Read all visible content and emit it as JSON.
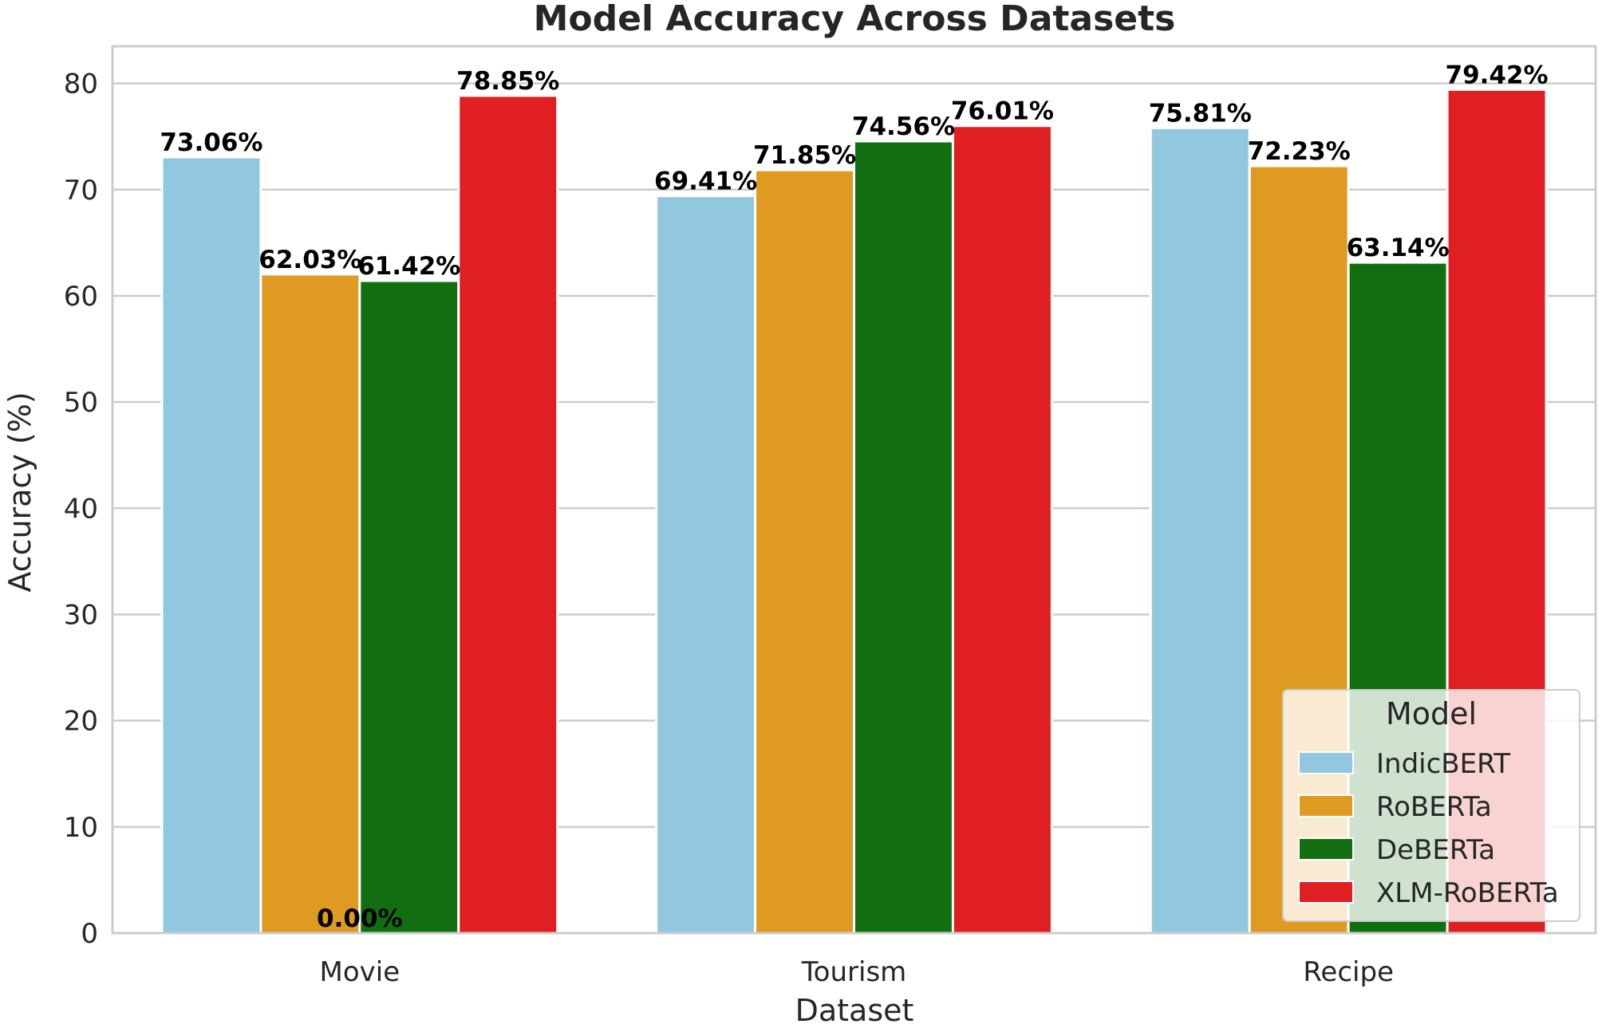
{
  "chart_data": {
    "type": "bar",
    "title": "Model Accuracy Across Datasets",
    "xlabel": "Dataset",
    "ylabel": "Accuracy (%)",
    "categories": [
      "Movie",
      "Tourism",
      "Recipe"
    ],
    "ylim": [
      0,
      83.5
    ],
    "yticks": [
      0,
      10,
      20,
      30,
      40,
      50,
      60,
      70,
      80
    ],
    "grid": true,
    "legend": {
      "title": "Model",
      "placement": "lower-right"
    },
    "series": [
      {
        "name": "IndicBERT",
        "color": "#92c8df",
        "values": [
          73.06,
          69.41,
          75.81
        ],
        "labels": [
          "73.06%",
          "69.41%",
          "75.81%"
        ]
      },
      {
        "name": "RoBERTa",
        "color": "#df9a22",
        "values": [
          62.03,
          71.85,
          72.23
        ],
        "labels": [
          "62.03%",
          "71.85%",
          "72.23%"
        ]
      },
      {
        "name": "DeBERTa",
        "color": "#116f12",
        "values": [
          61.42,
          74.56,
          63.14
        ],
        "labels": [
          "61.42%",
          "74.56%",
          "63.14%"
        ]
      },
      {
        "name": "XLM-RoBERTa",
        "color": "#df1f22",
        "values": [
          78.85,
          76.01,
          79.42
        ],
        "labels": [
          "78.85%",
          "76.01%",
          "79.42%"
        ]
      }
    ],
    "annotations": [
      "0.00%"
    ]
  }
}
